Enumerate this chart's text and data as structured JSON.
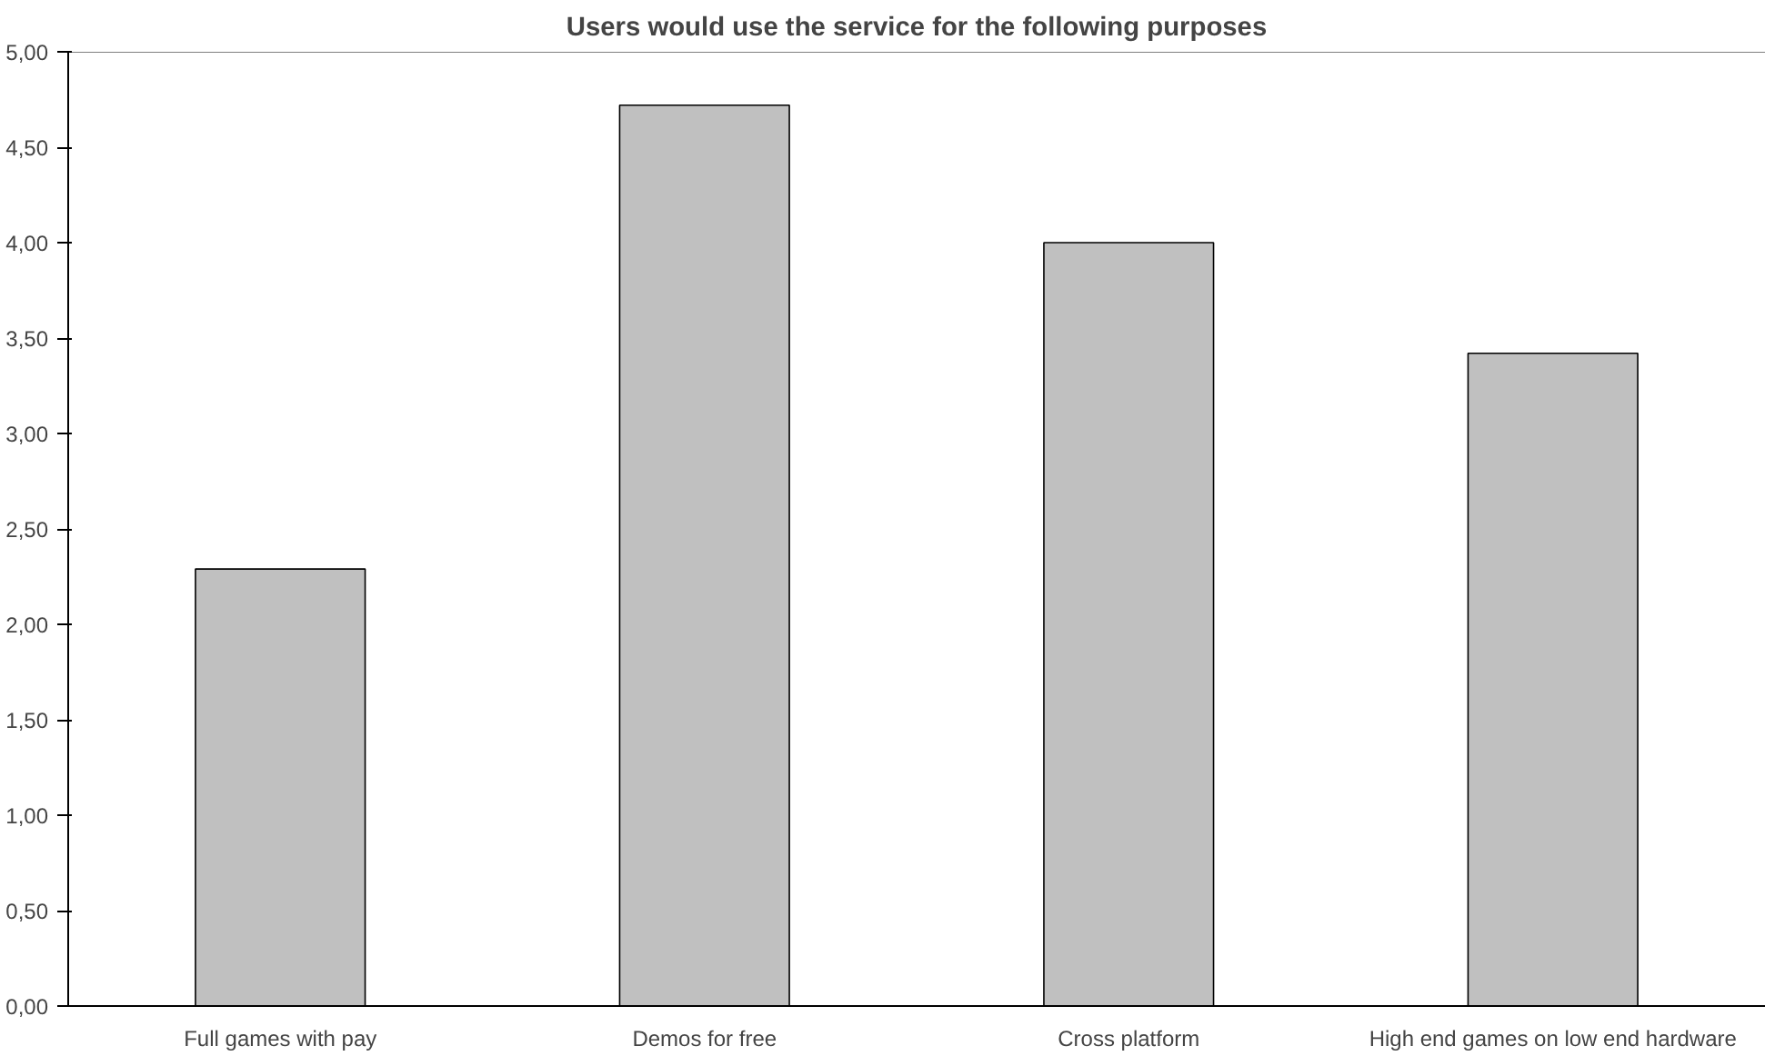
{
  "chart_data": {
    "type": "bar",
    "title": "Users would use the service for the following purposes",
    "categories": [
      "Full games with pay",
      "Demos for free",
      "Cross platform",
      "High end games on low end hardware"
    ],
    "values": [
      2.29,
      4.72,
      4.0,
      3.42
    ],
    "color": "#c0c0c0",
    "ylim": [
      0,
      5
    ],
    "yticks": [
      {
        "value": 0,
        "label": "0,00"
      },
      {
        "value": 0.5,
        "label": "0,50"
      },
      {
        "value": 1,
        "label": "1,00"
      },
      {
        "value": 1.5,
        "label": "1,50"
      },
      {
        "value": 2,
        "label": "2,00"
      },
      {
        "value": 2.5,
        "label": "2,50"
      },
      {
        "value": 3,
        "label": "3,00"
      },
      {
        "value": 3.5,
        "label": "3,50"
      },
      {
        "value": 4,
        "label": "4,00"
      },
      {
        "value": 4.5,
        "label": "4,50"
      },
      {
        "value": 5,
        "label": "5,00"
      }
    ],
    "grid": false
  }
}
